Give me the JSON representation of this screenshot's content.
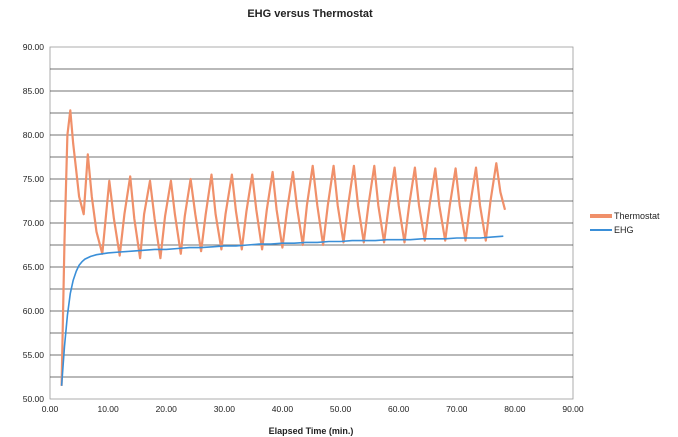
{
  "chart_data": {
    "type": "line",
    "title": "EHG versus Thermostat",
    "xlabel": "Elapsed Time (min.)",
    "ylabel": "",
    "xlim": [
      0,
      90
    ],
    "ylim": [
      50,
      90
    ],
    "x_ticks": [
      "0.00",
      "10.00",
      "20.00",
      "30.00",
      "40.00",
      "50.00",
      "60.00",
      "70.00",
      "80.00",
      "90.00"
    ],
    "y_ticks": [
      "50.00",
      "55.00",
      "60.00",
      "65.00",
      "70.00",
      "75.00",
      "80.00",
      "85.00",
      "90.00"
    ],
    "legend_position": "right",
    "grid": true,
    "colors": {
      "Thermostat": "#f0906a",
      "EHG": "#3a8fd8"
    },
    "series": [
      {
        "name": "Thermostat",
        "x": [
          2.0,
          2.5,
          3.0,
          3.5,
          4.0,
          4.5,
          5.0,
          5.8,
          6.5,
          7.2,
          8.0,
          9.0,
          10.2,
          11.0,
          12.0,
          12.8,
          13.8,
          14.5,
          15.5,
          16.2,
          17.2,
          18.0,
          19.0,
          19.8,
          20.8,
          21.5,
          22.5,
          23.2,
          24.2,
          25.0,
          26.0,
          26.8,
          27.8,
          28.5,
          29.5,
          30.2,
          31.3,
          32.0,
          33.0,
          33.8,
          34.8,
          35.5,
          36.5,
          37.3,
          38.3,
          39.0,
          40.0,
          40.8,
          41.8,
          42.5,
          43.5,
          44.2,
          45.2,
          46.0,
          47.0,
          47.8,
          48.8,
          49.5,
          50.5,
          51.3,
          52.3,
          53.0,
          54.0,
          54.8,
          55.8,
          56.5,
          57.5,
          58.3,
          59.3,
          60.0,
          61.0,
          61.8,
          62.8,
          63.5,
          64.5,
          65.3,
          66.3,
          67.0,
          68.0,
          68.8,
          69.8,
          70.5,
          71.5,
          72.3,
          73.3,
          74.0,
          75.0,
          75.8,
          76.8,
          77.5,
          78.3
        ],
        "values": [
          51.5,
          68.0,
          80.0,
          82.8,
          79.0,
          76.0,
          73.0,
          71.0,
          77.8,
          73.0,
          69.0,
          66.5,
          74.8,
          70.5,
          66.3,
          71.0,
          75.3,
          70.5,
          66.0,
          71.0,
          74.8,
          70.5,
          66.0,
          70.8,
          74.8,
          71.0,
          66.5,
          70.8,
          75.0,
          71.0,
          66.8,
          71.0,
          75.5,
          71.0,
          67.0,
          71.0,
          75.5,
          71.3,
          67.0,
          71.3,
          75.5,
          71.5,
          67.0,
          71.5,
          75.8,
          71.5,
          67.2,
          71.5,
          75.8,
          71.8,
          67.5,
          72.0,
          76.5,
          72.0,
          67.5,
          72.0,
          76.5,
          72.0,
          67.8,
          72.0,
          76.5,
          72.0,
          67.8,
          72.0,
          76.5,
          72.0,
          67.8,
          72.0,
          76.3,
          72.0,
          67.8,
          72.0,
          76.3,
          72.0,
          68.0,
          72.0,
          76.2,
          72.0,
          68.0,
          72.0,
          76.2,
          72.0,
          68.0,
          72.0,
          76.3,
          72.0,
          68.0,
          72.5,
          76.8,
          73.5,
          71.5
        ]
      },
      {
        "name": "EHG",
        "x": [
          2.0,
          2.5,
          3.0,
          3.5,
          4.0,
          4.5,
          5.0,
          5.5,
          6.0,
          7.0,
          8.0,
          9.0,
          10.0,
          12.0,
          14.0,
          16.0,
          18.0,
          20.0,
          22.0,
          24.0,
          26.0,
          28.0,
          30.0,
          32.0,
          34.0,
          36.0,
          38.0,
          40.0,
          42.0,
          44.0,
          46.0,
          48.0,
          50.0,
          52.0,
          54.0,
          56.0,
          58.0,
          60.0,
          62.0,
          64.0,
          66.0,
          68.0,
          70.0,
          72.0,
          74.0,
          76.0,
          78.0
        ],
        "values": [
          51.5,
          56.0,
          59.5,
          62.0,
          63.5,
          64.5,
          65.2,
          65.6,
          65.9,
          66.2,
          66.4,
          66.5,
          66.6,
          66.7,
          66.8,
          66.9,
          67.0,
          67.0,
          67.1,
          67.2,
          67.2,
          67.3,
          67.4,
          67.4,
          67.5,
          67.6,
          67.6,
          67.7,
          67.7,
          67.8,
          67.8,
          67.9,
          67.9,
          68.0,
          68.0,
          68.0,
          68.1,
          68.1,
          68.1,
          68.2,
          68.2,
          68.2,
          68.3,
          68.3,
          68.3,
          68.4,
          68.5
        ]
      }
    ]
  }
}
